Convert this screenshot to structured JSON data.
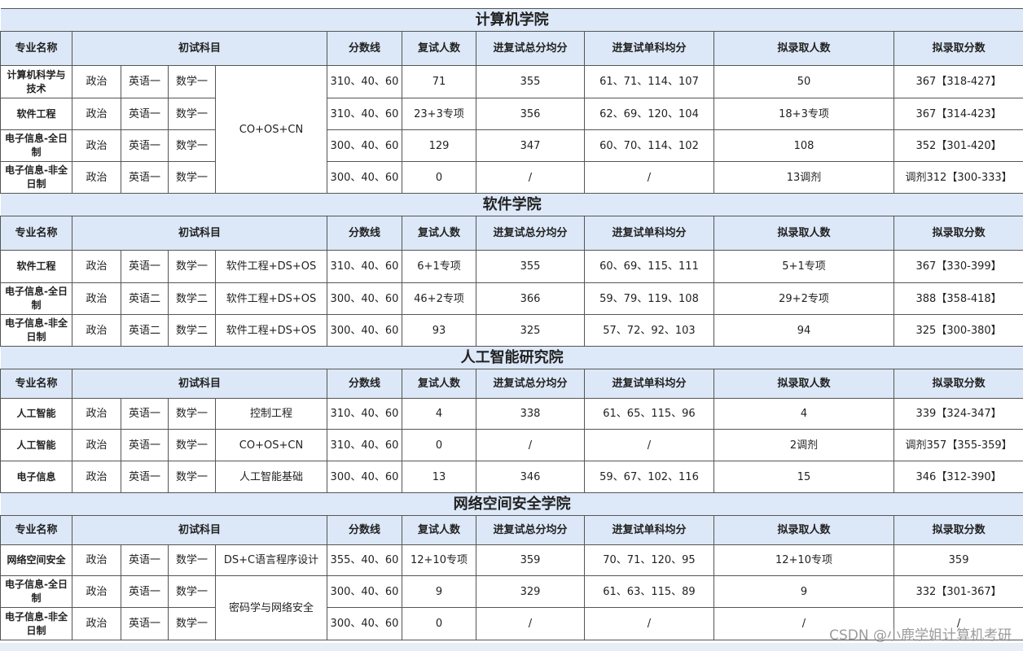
{
  "headers": [
    "专业名称",
    "初试科目",
    "分数线",
    "复试人数",
    "进复试总分均分",
    "进复试单科均分",
    "拟录取人数",
    "拟录取分数"
  ],
  "sections": [
    {
      "title": "计算机学院",
      "rows": [
        {
          "major": "计算机科学与技术",
          "politics": "政治",
          "english": "英语一",
          "math": "数学一",
          "subject": "CO+OS+CN",
          "subject_rowspan": 4,
          "cutoff": "310、40、60",
          "retest_count": "71",
          "avg_total": "355",
          "avg_single": "61、71、114、107",
          "admit_count": "50",
          "admit_score": "367【318-427】"
        },
        {
          "major": "软件工程",
          "politics": "政治",
          "english": "英语一",
          "math": "数学一",
          "subject": null,
          "cutoff": "310、40、60",
          "retest_count": "23+3专项",
          "avg_total": "356",
          "avg_single": "62、69、120、104",
          "admit_count": "18+3专项",
          "admit_score": "367【314-423】"
        },
        {
          "major": "电子信息-全日制",
          "politics": "政治",
          "english": "英语一",
          "math": "数学一",
          "subject": null,
          "cutoff": "300、40、60",
          "retest_count": "129",
          "avg_total": "347",
          "avg_single": "60、70、114、102",
          "admit_count": "108",
          "admit_score": "352【301-420】"
        },
        {
          "major": "电子信息-非全日制",
          "politics": "政治",
          "english": "英语一",
          "math": "数学一",
          "subject": null,
          "cutoff": "300、40、60",
          "retest_count": "0",
          "avg_total": "/",
          "avg_single": "/",
          "admit_count": "13调剂",
          "admit_score": "调剂312【300-333】"
        }
      ]
    },
    {
      "title": "软件学院",
      "rows": [
        {
          "major": "软件工程",
          "politics": "政治",
          "english": "英语一",
          "math": "数学一",
          "subject": "软件工程+DS+OS",
          "subject_rowspan": 1,
          "cutoff": "310、40、60",
          "retest_count": "6+1专项",
          "avg_total": "355",
          "avg_single": "60、69、115、111",
          "admit_count": "5+1专项",
          "admit_score": "367【330-399】"
        },
        {
          "major": "电子信息-全日制",
          "politics": "政治",
          "english": "英语二",
          "math": "数学二",
          "subject": "软件工程+DS+OS",
          "subject_rowspan": 1,
          "cutoff": "300、40、60",
          "retest_count": "46+2专项",
          "avg_total": "366",
          "avg_single": "59、79、119、108",
          "admit_count": "29+2专项",
          "admit_score": "388【358-418】"
        },
        {
          "major": "电子信息-非全日制",
          "politics": "政治",
          "english": "英语二",
          "math": "数学二",
          "subject": "软件工程+DS+OS",
          "subject_rowspan": 1,
          "cutoff": "300、40、60",
          "retest_count": "93",
          "avg_total": "325",
          "avg_single": "57、72、92、103",
          "admit_count": "94",
          "admit_score": "325【300-380】"
        }
      ]
    },
    {
      "title": "人工智能研究院",
      "rows": [
        {
          "major": "人工智能",
          "politics": "政治",
          "english": "英语一",
          "math": "数学一",
          "subject": "控制工程",
          "subject_rowspan": 1,
          "cutoff": "310、40、60",
          "retest_count": "4",
          "avg_total": "338",
          "avg_single": "61、65、115、96",
          "admit_count": "4",
          "admit_score": "339【324-347】"
        },
        {
          "major": "人工智能",
          "politics": "政治",
          "english": "英语一",
          "math": "数学一",
          "subject": "CO+OS+CN",
          "subject_rowspan": 1,
          "cutoff": "310、40、60",
          "retest_count": "0",
          "avg_total": "/",
          "avg_single": "/",
          "admit_count": "2调剂",
          "admit_score": "调剂357【355-359】"
        },
        {
          "major": "电子信息",
          "politics": "政治",
          "english": "英语一",
          "math": "数学一",
          "subject": "人工智能基础",
          "subject_rowspan": 1,
          "cutoff": "300、40、60",
          "retest_count": "13",
          "avg_total": "346",
          "avg_single": "59、67、102、116",
          "admit_count": "15",
          "admit_score": "346【312-390】"
        }
      ]
    },
    {
      "title": "网络空间安全学院",
      "rows": [
        {
          "major": "网络空间安全",
          "politics": "政治",
          "english": "英语一",
          "math": "数学一",
          "subject": "DS+C语言程序设计",
          "subject_rowspan": 1,
          "cutoff": "355、40、60",
          "retest_count": "12+10专项",
          "avg_total": "359",
          "avg_single": "70、71、120、95",
          "admit_count": "12+10专项",
          "admit_score": "359"
        },
        {
          "major": "电子信息-全日制",
          "politics": "政治",
          "english": "英语一",
          "math": "数学一",
          "subject": "密码学与网络安全",
          "subject_rowspan": 2,
          "cutoff": "300、40、60",
          "retest_count": "9",
          "avg_total": "329",
          "avg_single": "61、63、115、89",
          "admit_count": "9",
          "admit_score": "332【301-367】"
        },
        {
          "major": "电子信息-非全日制",
          "politics": "政治",
          "english": "英语一",
          "math": "数学一",
          "subject": null,
          "cutoff": "300、40、60",
          "retest_count": "0",
          "avg_total": "/",
          "avg_single": "/",
          "admit_count": "/",
          "admit_score": "/"
        }
      ]
    }
  ],
  "watermark": "CSDN @小鹿学姐计算机考研"
}
